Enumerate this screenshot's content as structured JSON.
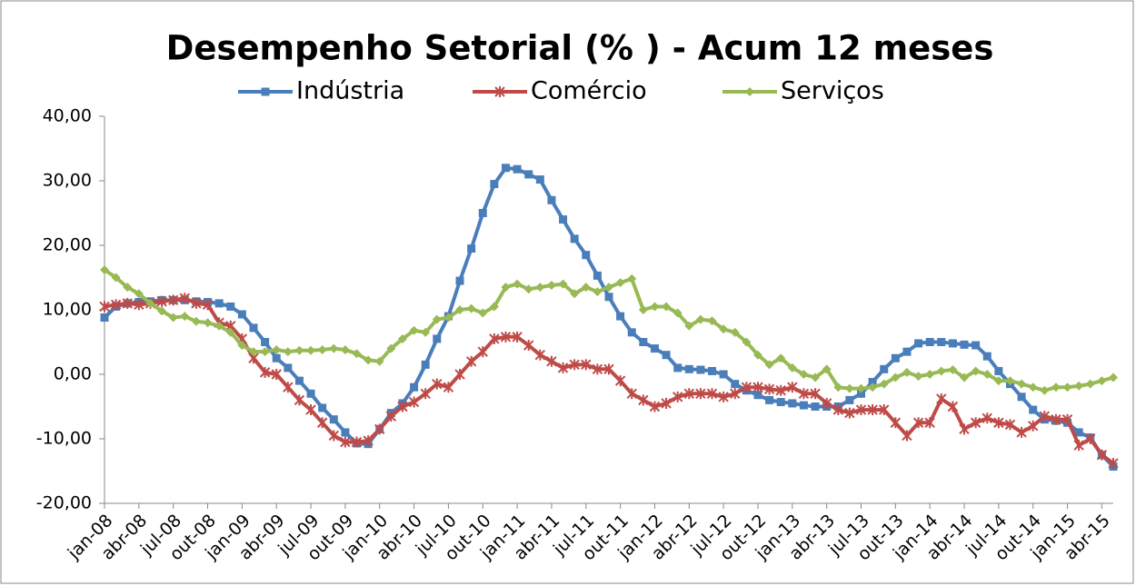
{
  "chart_data": {
    "type": "line",
    "title": "Desempenho Setorial (% ) - Acum 12 meses",
    "categories": [
      "jan-08",
      null,
      null,
      "abr-08",
      null,
      null,
      "jul-08",
      null,
      null,
      "out-08",
      null,
      null,
      "jan-09",
      null,
      null,
      "abr-09",
      null,
      null,
      "jul-09",
      null,
      null,
      "out-09",
      null,
      null,
      "jan-10",
      null,
      null,
      "abr-10",
      null,
      null,
      "jul-10",
      null,
      null,
      "out-10",
      null,
      null,
      "jan-11",
      null,
      null,
      "abr-11",
      null,
      null,
      "jul-11",
      null,
      null,
      "out-11",
      null,
      null,
      "jan-12",
      null,
      null,
      "abr-12",
      null,
      null,
      "jul-12",
      null,
      null,
      "out-12",
      null,
      null,
      "jan-13",
      null,
      null,
      "abr-13",
      null,
      null,
      "jul-13",
      null,
      null,
      "out-13",
      null,
      null,
      "jan-14",
      null,
      null,
      "abr-14",
      null,
      null,
      "jul-14",
      null,
      null,
      "out-14",
      null,
      null,
      "jan-15",
      null,
      null,
      "abr-15",
      null
    ],
    "series": [
      {
        "name": "Indústria",
        "color": "#4a7ebb",
        "marker": "square",
        "values": [
          8.8,
          10.5,
          11,
          11.2,
          11.3,
          11.5,
          11.5,
          11.5,
          11.3,
          11.2,
          11,
          10.5,
          9.3,
          7.2,
          5,
          2.5,
          1,
          -1,
          -3,
          -5.2,
          -7,
          -9,
          -10.7,
          -10.8,
          -8.5,
          -6,
          -4.5,
          -2,
          1.5,
          5.5,
          9,
          14.5,
          19.5,
          25,
          29.5,
          32,
          31.8,
          31,
          30.2,
          27,
          24,
          21,
          18.5,
          15.3,
          12,
          9,
          6.5,
          5,
          4,
          3,
          1,
          0.8,
          0.7,
          0.5,
          0,
          -1.5,
          -2.5,
          -3.2,
          -4,
          -4.3,
          -4.5,
          -4.8,
          -5,
          -5,
          -5,
          -4,
          -3,
          -1.2,
          0.8,
          2.5,
          3.5,
          4.8,
          5,
          5,
          4.8,
          4.6,
          4.5,
          2.8,
          0.5,
          -1.5,
          -3.5,
          -5.5,
          -7,
          -7.2,
          -7.5,
          -9,
          -9.8,
          -12.5,
          -14.3
        ]
      },
      {
        "name": "Comércio",
        "color": "#be4b48",
        "marker": "star",
        "values": [
          10.5,
          10.8,
          11,
          10.8,
          11,
          11.3,
          11.5,
          11.8,
          11,
          10.8,
          8,
          7.5,
          5.5,
          2.5,
          0.3,
          0,
          -2,
          -4,
          -5.5,
          -7.5,
          -9.5,
          -10.5,
          -10.5,
          -10.3,
          -8.5,
          -6.5,
          -5,
          -4.3,
          -3,
          -1.5,
          -2,
          0,
          2,
          3.5,
          5.5,
          5.8,
          5.8,
          4.5,
          3,
          2,
          1,
          1.5,
          1.5,
          0.8,
          0.8,
          -1,
          -3,
          -4,
          -5,
          -4.5,
          -3.5,
          -3,
          -3,
          -3,
          -3.5,
          -3,
          -2,
          -2,
          -2.3,
          -2.5,
          -2,
          -3,
          -3,
          -4.5,
          -5.5,
          -6,
          -5.5,
          -5.5,
          -5.5,
          -7.5,
          -9.5,
          -7.5,
          -7.5,
          -3.8,
          -5,
          -8.5,
          -7.5,
          -6.8,
          -7.5,
          -7.8,
          -9,
          -8,
          -6.5,
          -7,
          -7,
          -11,
          -10,
          -12.5,
          -13.8
        ]
      },
      {
        "name": "Serviços",
        "color": "#98b954",
        "marker": "diamond",
        "values": [
          16.2,
          15,
          13.5,
          12.5,
          11,
          9.8,
          8.8,
          9,
          8.2,
          8,
          7.5,
          6.5,
          4.5,
          3.5,
          3.5,
          3.8,
          3.5,
          3.7,
          3.7,
          3.8,
          4,
          3.8,
          3.2,
          2.2,
          2,
          4,
          5.5,
          6.8,
          6.5,
          8.5,
          8.8,
          10,
          10.2,
          9.5,
          10.5,
          13.5,
          14,
          13.2,
          13.5,
          13.8,
          14,
          12.5,
          13.5,
          12.8,
          13.5,
          14.2,
          14.8,
          10,
          10.5,
          10.5,
          9.5,
          7.5,
          8.5,
          8.3,
          7,
          6.5,
          5,
          3,
          1.5,
          2.5,
          1,
          0,
          -0.5,
          0.8,
          -2,
          -2.2,
          -2.2,
          -2,
          -1.5,
          -0.5,
          0.3,
          -0.3,
          0,
          0.5,
          0.7,
          -0.5,
          0.5,
          0,
          -1,
          -1,
          -1.5,
          -2,
          -2.5,
          -2,
          -2,
          -1.8,
          -1.5,
          -1,
          -0.5
        ]
      }
    ],
    "ylim": [
      -20,
      40
    ],
    "yticks": [
      {
        "value": -20,
        "label": "-20,00"
      },
      {
        "value": -10,
        "label": "-10,00"
      },
      {
        "value": 0,
        "label": "0,00"
      },
      {
        "value": 10,
        "label": "10,00"
      },
      {
        "value": 20,
        "label": "20,00"
      },
      {
        "value": 30,
        "label": "30,00"
      },
      {
        "value": 40,
        "label": "40,00"
      }
    ],
    "grid": false,
    "legend": "top"
  }
}
